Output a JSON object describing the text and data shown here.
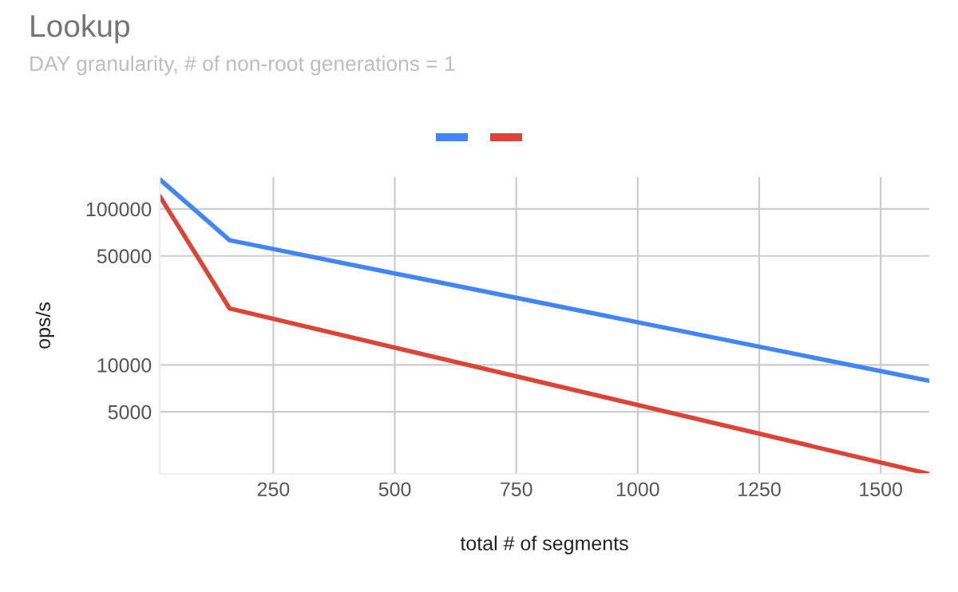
{
  "chart_data": {
    "type": "line",
    "title": "Lookup",
    "subtitle": "DAY granularity, # of non-root generations = 1",
    "xlabel": "total # of segments",
    "ylabel": "ops/s",
    "x": [
      16,
      160,
      1600
    ],
    "series": [
      {
        "color": "#4285f4",
        "values": [
          155000,
          63000,
          7900
        ]
      },
      {
        "color": "#db4437",
        "values": [
          121000,
          23000,
          2000
        ]
      }
    ],
    "log": "y",
    "xlim": [
      16,
      1600
    ],
    "xticks": [
      250,
      500,
      750,
      1000,
      1250,
      1500
    ],
    "ylim": [
      2000,
      160000
    ],
    "yticks": [
      5000,
      10000,
      50000,
      100000
    ],
    "grid": true,
    "marker": "none",
    "line_style": "solid"
  }
}
